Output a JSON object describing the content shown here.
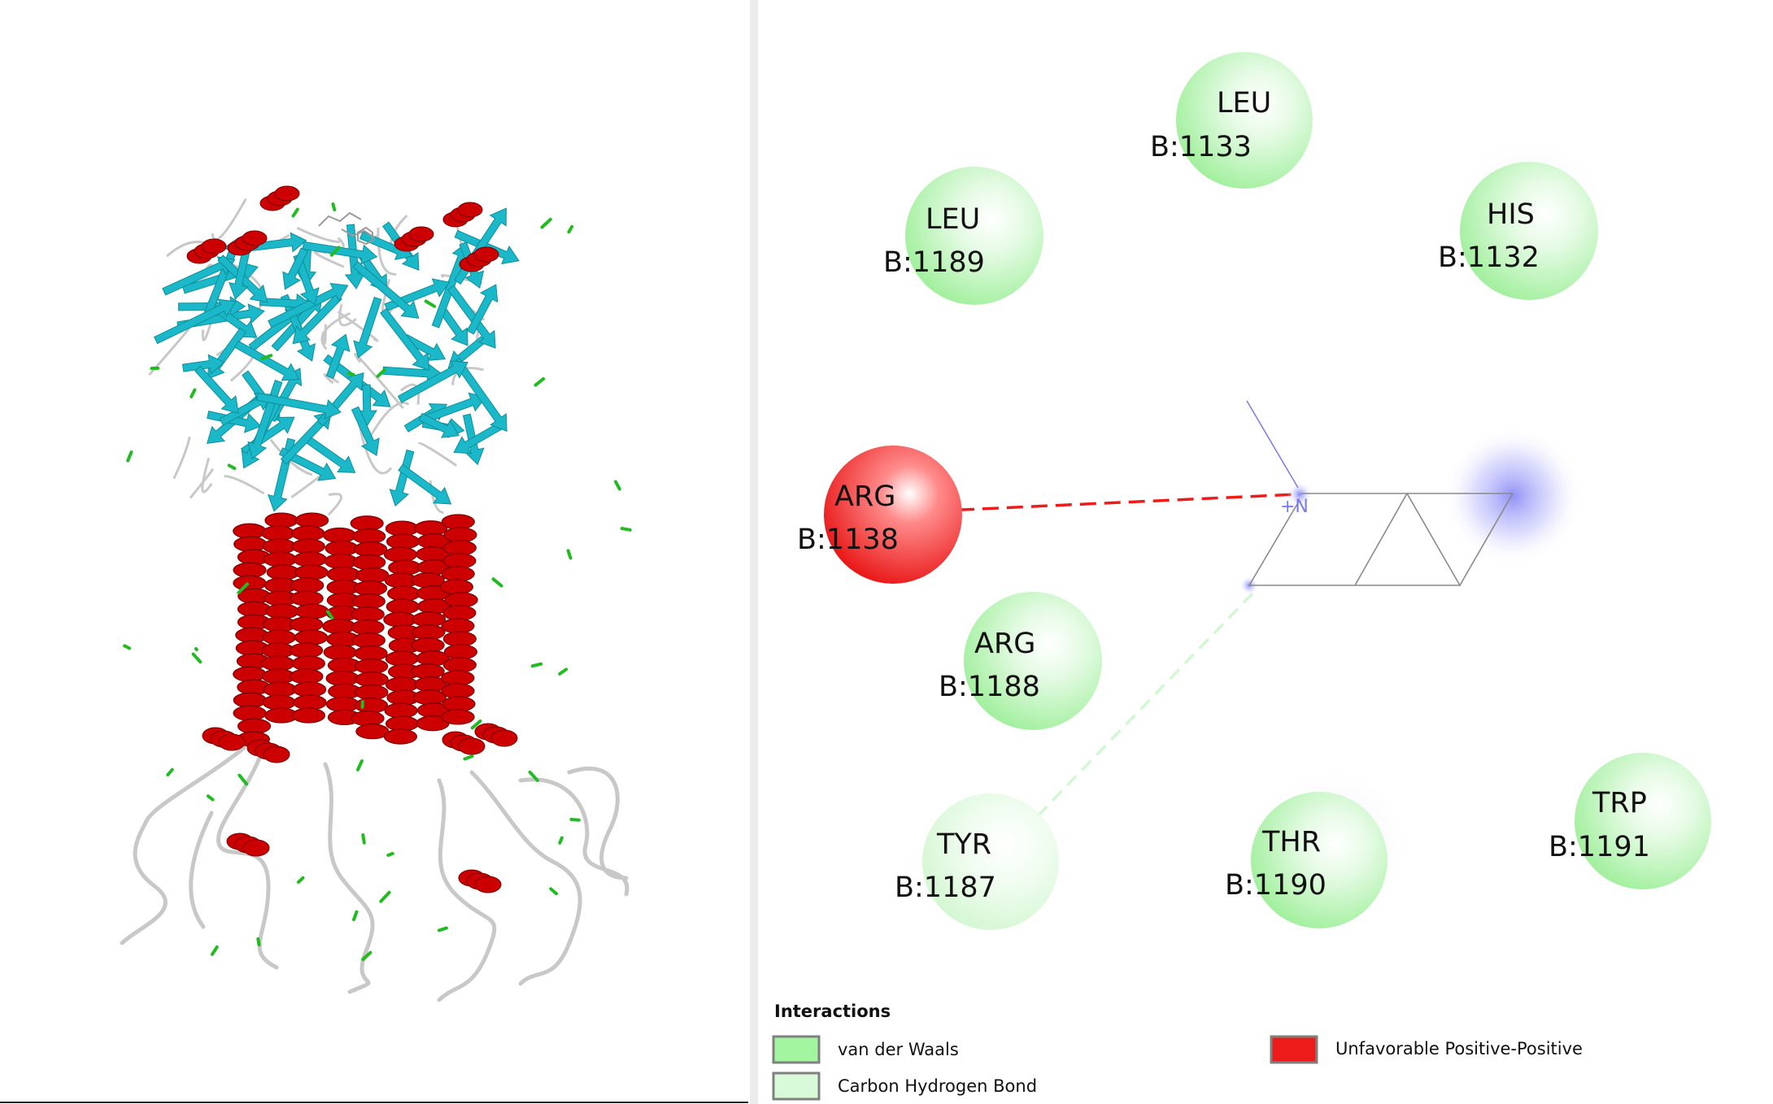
{
  "colors": {
    "van_der_waals": "#a4f5a0",
    "carbon_hydrogen_bond": "#d8fad8",
    "unfavorable_positive_positive": "#ee1b1b",
    "helix": "#cc0000",
    "sheet": "#1ab8c8",
    "turn": "#22bb22",
    "coil": "#c8c8c8"
  },
  "ligand": {
    "atom_label": "+N"
  },
  "residues": [
    {
      "name": "LEU",
      "id": "B:1133",
      "interaction": "van_der_waals"
    },
    {
      "name": "LEU",
      "id": "B:1189",
      "interaction": "van_der_waals"
    },
    {
      "name": "HIS",
      "id": "B:1132",
      "interaction": "van_der_waals"
    },
    {
      "name": "ARG",
      "id": "B:1138",
      "interaction": "unfavorable_positive_positive"
    },
    {
      "name": "ARG",
      "id": "B:1188",
      "interaction": "van_der_waals"
    },
    {
      "name": "TYR",
      "id": "B:1187",
      "interaction": "carbon_hydrogen_bond"
    },
    {
      "name": "THR",
      "id": "B:1190",
      "interaction": "van_der_waals"
    },
    {
      "name": "TRP",
      "id": "B:1191",
      "interaction": "van_der_waals"
    }
  ],
  "legend": {
    "title": "Interactions",
    "items": [
      {
        "label": "van der Waals",
        "color": "#a4f5a0"
      },
      {
        "label": "Carbon Hydrogen Bond",
        "color": "#d8fad8"
      },
      {
        "label": "Unfavorable Positive-Positive",
        "color": "#ee1b1b"
      }
    ]
  }
}
